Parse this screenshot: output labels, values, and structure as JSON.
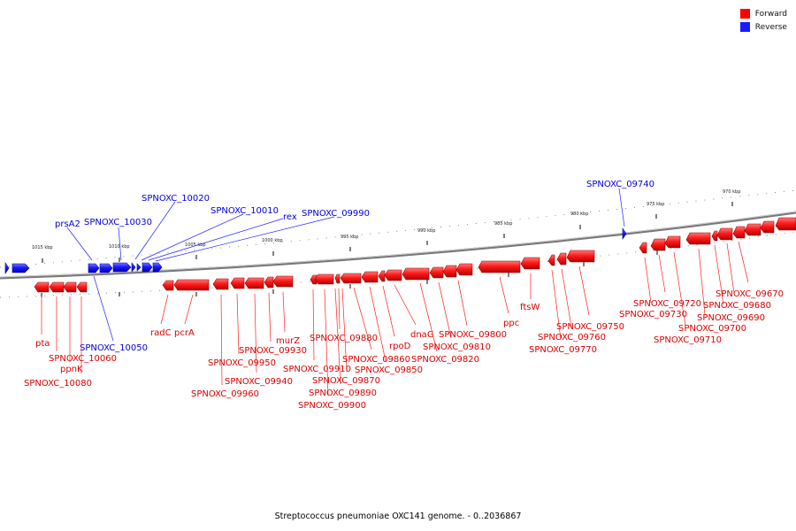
{
  "legend": {
    "forward_label": "Forward",
    "reverse_label": "Reverse",
    "forward_color": "#ff0000",
    "reverse_color": "#1a1aff"
  },
  "caption": "Streptococcus pneumoniae OXC141 genome. - 0..2036867",
  "axis_ticks": [
    "1015 kbp",
    "1010 kbp",
    "1005 kbp",
    "1000 kbp",
    "995 kbp",
    "990 kbp",
    "985 kbp",
    "980 kbp",
    "975 kbp",
    "970 kbp"
  ],
  "genes_reverse": [
    {
      "label": "prsA2",
      "kind": "reverse"
    },
    {
      "label": "SPNOXC_10030",
      "kind": "reverse"
    },
    {
      "label": "SPNOXC_10020",
      "kind": "reverse"
    },
    {
      "label": "SPNOXC_10010",
      "kind": "reverse"
    },
    {
      "label": "rex",
      "kind": "reverse"
    },
    {
      "label": "SPNOXC_09990",
      "kind": "reverse"
    },
    {
      "label": "SPNOXC_10050",
      "kind": "reverse"
    },
    {
      "label": "SPNOXC_09740",
      "kind": "reverse"
    }
  ],
  "genes_forward": [
    {
      "label": "pta"
    },
    {
      "label": "SPNOXC_10060"
    },
    {
      "label": "ppnK"
    },
    {
      "label": "SPNOXC_10080"
    },
    {
      "label": "radC"
    },
    {
      "label": "pcrA"
    },
    {
      "label": "SPNOXC_09960"
    },
    {
      "label": "SPNOXC_09950"
    },
    {
      "label": "SPNOXC_09940"
    },
    {
      "label": "SPNOXC_09930"
    },
    {
      "label": "murZ"
    },
    {
      "label": "SPNOXC_09910"
    },
    {
      "label": "SPNOXC_09900"
    },
    {
      "label": "SPNOXC_09890"
    },
    {
      "label": "SPNOXC_09880"
    },
    {
      "label": "SPNOXC_09870"
    },
    {
      "label": "SPNOXC_09860"
    },
    {
      "label": "SPNOXC_09850"
    },
    {
      "label": "rpoD"
    },
    {
      "label": "dnaG"
    },
    {
      "label": "SPNOXC_09820"
    },
    {
      "label": "SPNOXC_09810"
    },
    {
      "label": "SPNOXC_09800"
    },
    {
      "label": "ppc"
    },
    {
      "label": "ftsW"
    },
    {
      "label": "SPNOXC_09770"
    },
    {
      "label": "SPNOXC_09760"
    },
    {
      "label": "SPNOXC_09750"
    },
    {
      "label": "SPNOXC_09730"
    },
    {
      "label": "SPNOXC_09720"
    },
    {
      "label": "SPNOXC_09710"
    },
    {
      "label": "SPNOXC_09700"
    },
    {
      "label": "SPNOXC_09690"
    },
    {
      "label": "SPNOXC_09680"
    },
    {
      "label": "SPNOXC_09670"
    }
  ]
}
